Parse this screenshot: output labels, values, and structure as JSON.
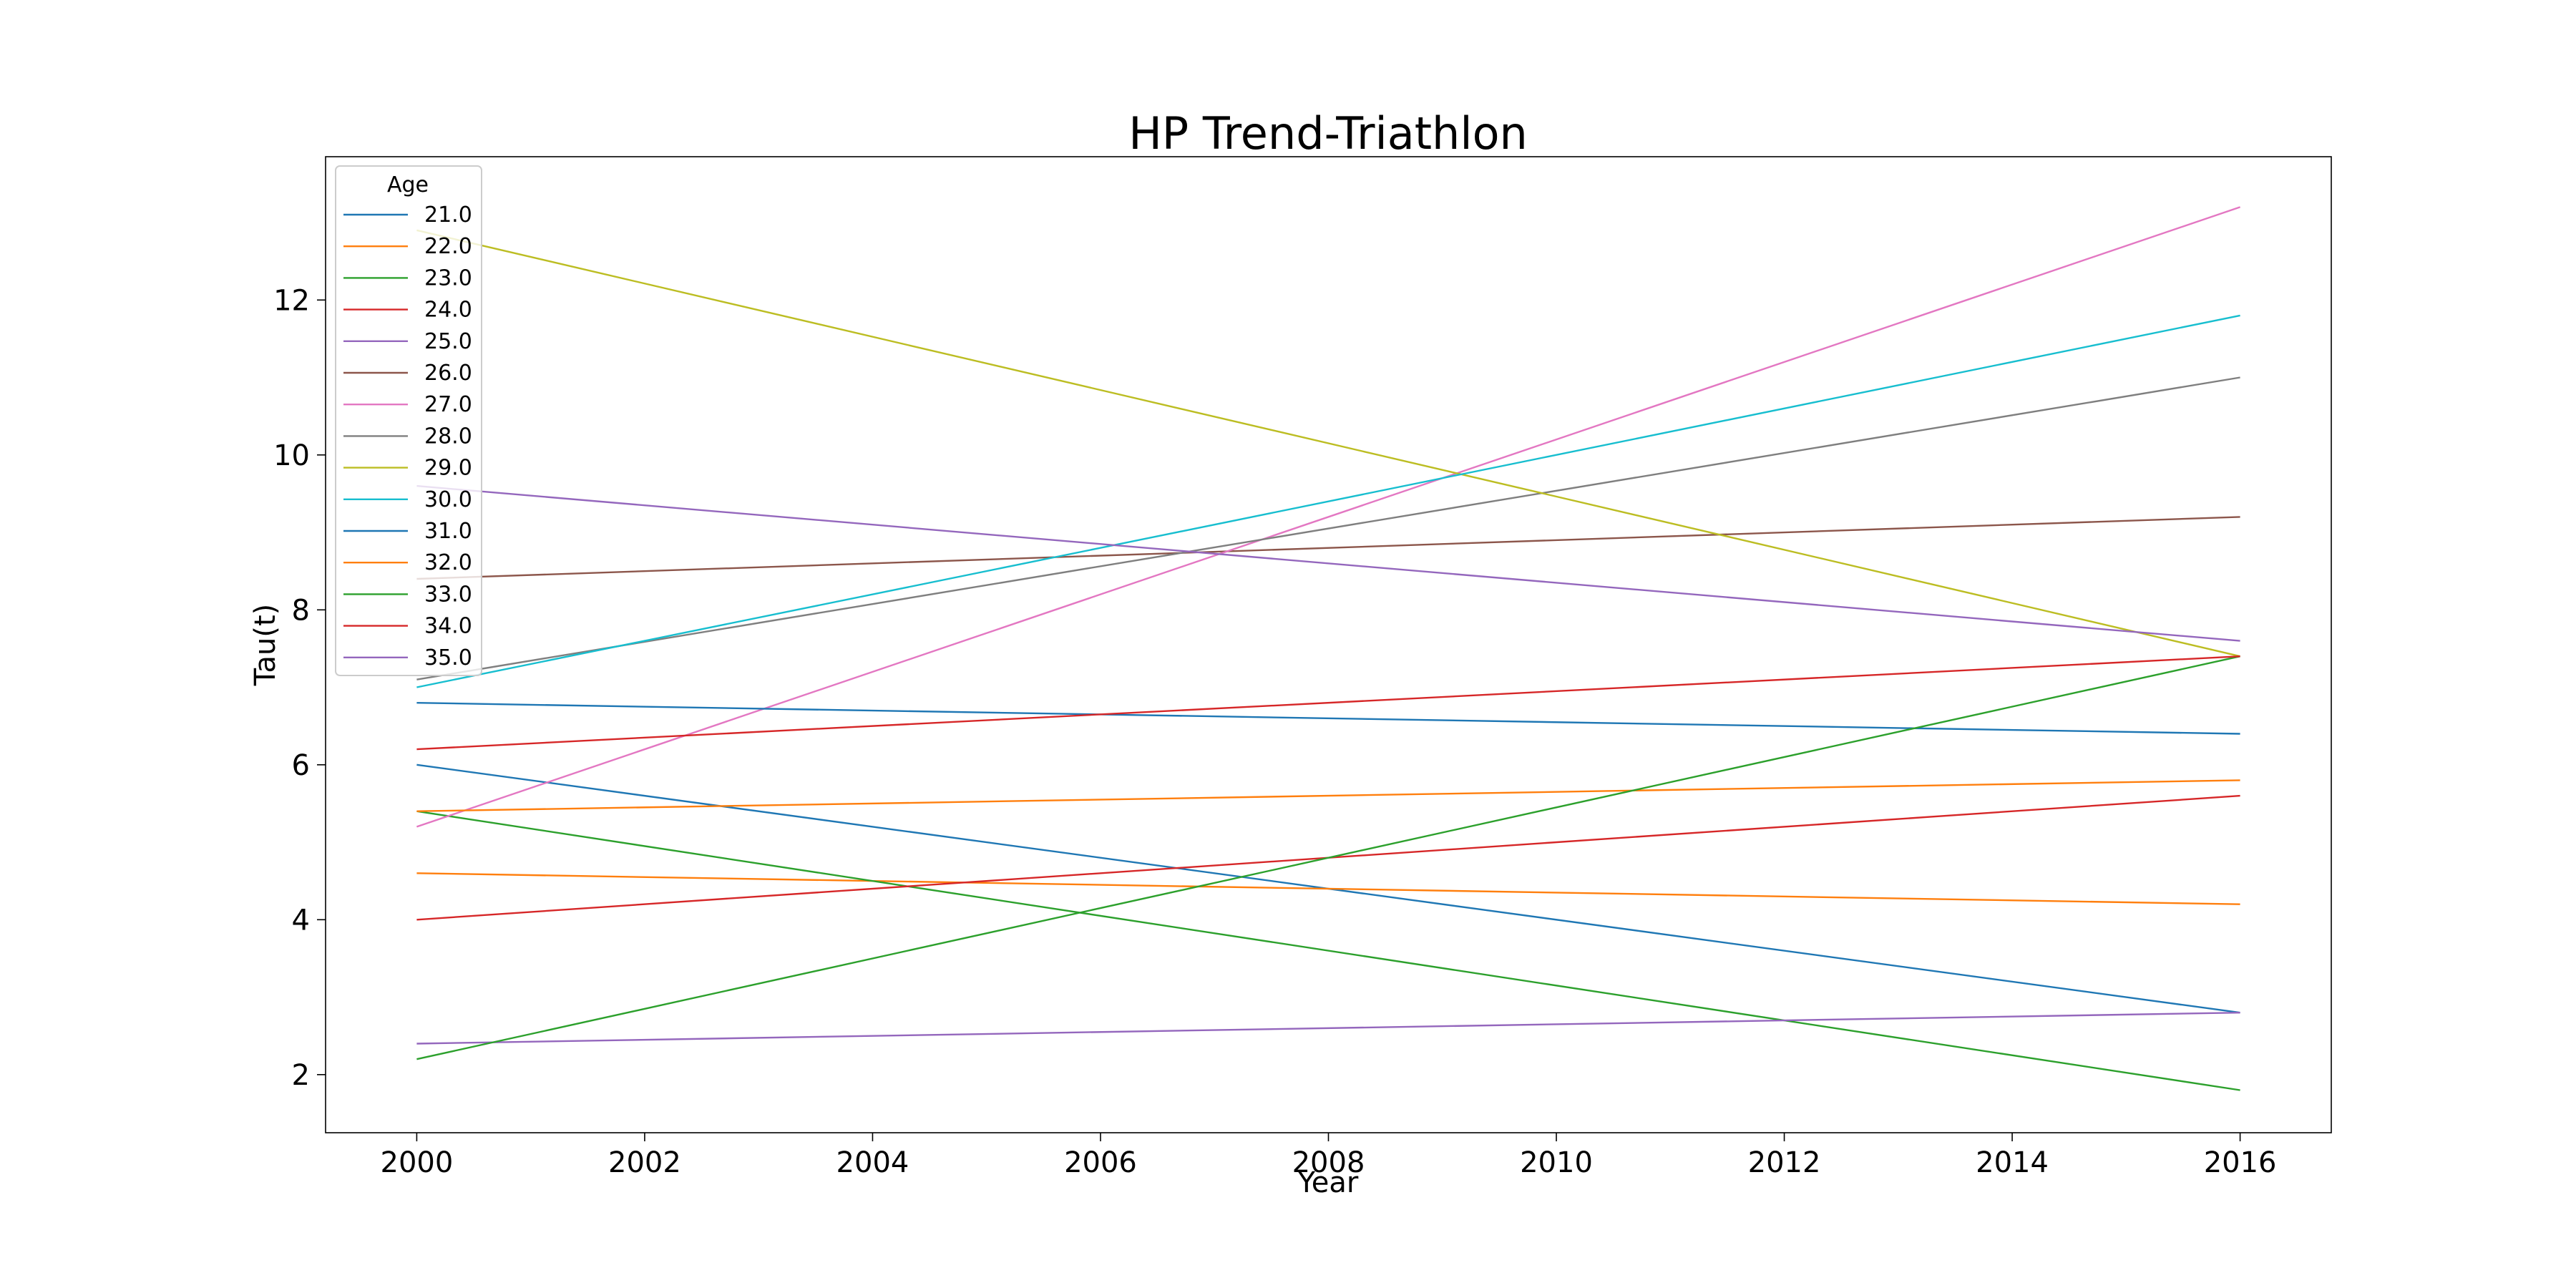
{
  "chart_data": {
    "type": "line",
    "title": "HP Trend-Triathlon",
    "xlabel": "Year",
    "ylabel": "Tau(t)",
    "xlim": [
      1999.2,
      2016.8
    ],
    "ylim": [
      1.25,
      13.85
    ],
    "x_ticks": [
      2000,
      2002,
      2004,
      2006,
      2008,
      2010,
      2012,
      2014,
      2016
    ],
    "y_ticks": [
      2,
      4,
      6,
      8,
      10,
      12
    ],
    "grid": false,
    "legend": {
      "title": "Age",
      "position": "upper-left"
    },
    "x": [
      2000,
      2016
    ],
    "series": [
      {
        "name": "21.0",
        "color": "#1f77b4",
        "values": [
          6.0,
          2.8
        ]
      },
      {
        "name": "22.0",
        "color": "#ff7f0e",
        "values": [
          4.6,
          4.2
        ]
      },
      {
        "name": "23.0",
        "color": "#2ca02c",
        "values": [
          5.4,
          1.8
        ]
      },
      {
        "name": "24.0",
        "color": "#d62728",
        "values": [
          4.0,
          5.6
        ]
      },
      {
        "name": "25.0",
        "color": "#9467bd",
        "values": [
          2.4,
          2.8
        ]
      },
      {
        "name": "26.0",
        "color": "#8c564b",
        "values": [
          8.4,
          9.2
        ]
      },
      {
        "name": "27.0",
        "color": "#e377c2",
        "values": [
          5.2,
          13.2
        ]
      },
      {
        "name": "28.0",
        "color": "#7f7f7f",
        "values": [
          7.1,
          11.0
        ]
      },
      {
        "name": "29.0",
        "color": "#bcbd22",
        "values": [
          12.9,
          7.4
        ]
      },
      {
        "name": "30.0",
        "color": "#17becf",
        "values": [
          7.0,
          11.8
        ]
      },
      {
        "name": "31.0",
        "color": "#1f77b4",
        "values": [
          6.8,
          6.4
        ]
      },
      {
        "name": "32.0",
        "color": "#ff7f0e",
        "values": [
          5.4,
          5.8
        ]
      },
      {
        "name": "33.0",
        "color": "#2ca02c",
        "values": [
          2.2,
          7.4
        ]
      },
      {
        "name": "34.0",
        "color": "#d62728",
        "values": [
          6.2,
          7.4
        ]
      },
      {
        "name": "35.0",
        "color": "#9467bd",
        "values": [
          9.6,
          7.6
        ]
      }
    ]
  }
}
